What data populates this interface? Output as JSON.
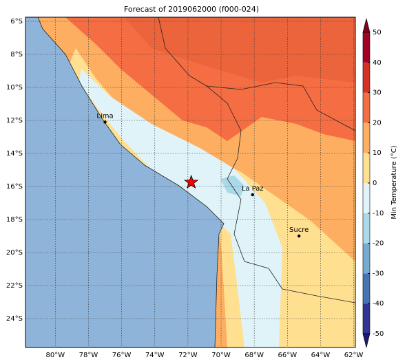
{
  "title": "Forecast of 2019062000 (f000-024)",
  "map": {
    "xlim": [
      -81.8,
      -61.9
    ],
    "ylim": [
      -25.75,
      -5.75
    ],
    "xticks": [
      {
        "value": -80,
        "label": "80°W"
      },
      {
        "value": -78,
        "label": "78°W"
      },
      {
        "value": -76,
        "label": "76°W"
      },
      {
        "value": -74,
        "label": "74°W"
      },
      {
        "value": -72,
        "label": "72°W"
      },
      {
        "value": -70,
        "label": "70°W"
      },
      {
        "value": -68,
        "label": "68°W"
      },
      {
        "value": -66,
        "label": "66°W"
      },
      {
        "value": -64,
        "label": "64°W"
      },
      {
        "value": -62,
        "label": "62°W"
      }
    ],
    "yticks": [
      {
        "value": -6,
        "label": "6°S"
      },
      {
        "value": -8,
        "label": "8°S"
      },
      {
        "value": -10,
        "label": "10°S"
      },
      {
        "value": -12,
        "label": "12°S"
      },
      {
        "value": -14,
        "label": "14°S"
      },
      {
        "value": -16,
        "label": "16°S"
      },
      {
        "value": -18,
        "label": "18°S"
      },
      {
        "value": -20,
        "label": "20°S"
      },
      {
        "value": -22,
        "label": "22°S"
      },
      {
        "value": -24,
        "label": "24°S"
      }
    ],
    "grid": true,
    "cities": [
      {
        "name": "Lima",
        "lon": -77.0,
        "lat": -12.1
      },
      {
        "name": "La Paz",
        "lon": -68.1,
        "lat": -16.5
      },
      {
        "name": "Sucre",
        "lon": -65.3,
        "lat": -19.0
      }
    ],
    "star": {
      "lon": -71.8,
      "lat": -15.75,
      "color": "#ff0000"
    }
  },
  "colorbar": {
    "label": "Min Temperature (°C)",
    "clim": [
      -50,
      50
    ],
    "ticks": [
      -50,
      -40,
      -30,
      -20,
      -10,
      0,
      10,
      20,
      30,
      40,
      50
    ],
    "colors": [
      "#313695",
      "#4575b4",
      "#74add1",
      "#abd9e9",
      "#e0f3f8",
      "#fee090",
      "#fdae61",
      "#f46d43",
      "#d73027",
      "#a50026"
    ],
    "extend_colors": [
      "#1a1a6e",
      "#800020"
    ]
  }
}
